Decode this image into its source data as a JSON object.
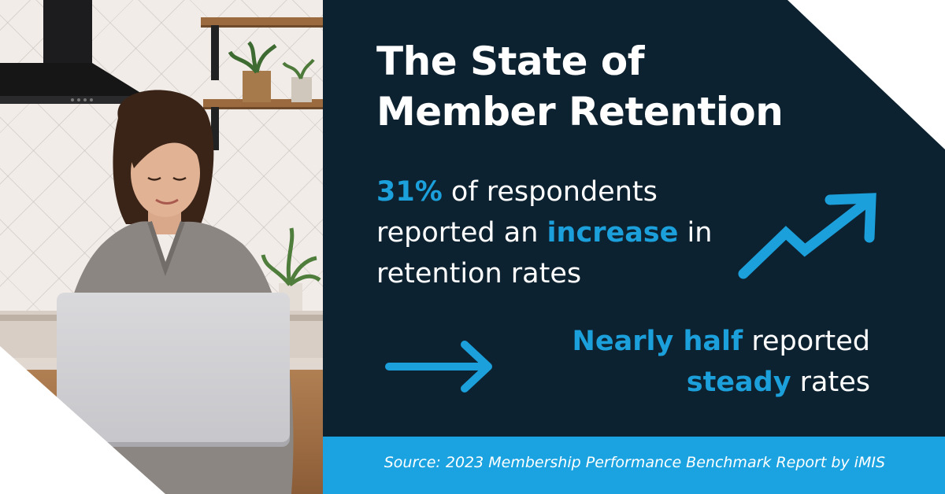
{
  "headline": {
    "line1": "The State of",
    "line2": "Member Retention"
  },
  "stat_increase": {
    "highlight": "31%",
    "text_a": " of respondents reported an ",
    "highlight2": "increase",
    "text_b": " in retention rates"
  },
  "stat_steady": {
    "highlight": "Nearly half",
    "text_a": " reported ",
    "highlight2": "steady",
    "text_b": " rates"
  },
  "source": "Source: 2023 Membership Performance Benchmark Report by iMIS",
  "icons": {
    "trend": "trending-up-arrow-icon",
    "steady": "right-arrow-icon"
  },
  "colors": {
    "panel": "#0d2230",
    "accent": "#1ba0dc",
    "source_bar": "#1aa3e0",
    "text": "#ffffff"
  }
}
